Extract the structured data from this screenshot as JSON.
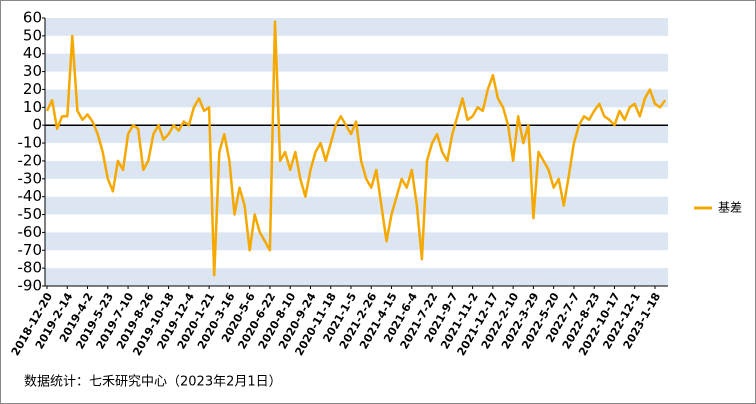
{
  "chart_data": {
    "type": "line",
    "categories": [
      "2018-12-20",
      null,
      null,
      null,
      "2019-2-14",
      null,
      null,
      null,
      "2019-4-2",
      null,
      null,
      null,
      "2019-5-23",
      null,
      null,
      null,
      "2019-7-10",
      null,
      null,
      null,
      "2019-8-26",
      null,
      null,
      null,
      "2019-10-18",
      null,
      null,
      null,
      "2019-12-4",
      null,
      null,
      null,
      "2020-1-21",
      null,
      null,
      null,
      "2020-3-16",
      null,
      null,
      null,
      "2020-5-6",
      null,
      null,
      null,
      "2020-6-22",
      null,
      null,
      null,
      "2020-8-10",
      null,
      null,
      null,
      "2020-9-24",
      null,
      null,
      null,
      "2020-11-18",
      null,
      null,
      null,
      "2021-1-5",
      null,
      null,
      null,
      "2021-2-26",
      null,
      null,
      null,
      "2021-4-15",
      null,
      null,
      null,
      "2021-6-4",
      null,
      null,
      null,
      "2021-7-22",
      null,
      null,
      null,
      "2021-9-7",
      null,
      null,
      null,
      "2021-11-2",
      null,
      null,
      null,
      "2021-12-17",
      null,
      null,
      null,
      "2022-2-10",
      null,
      null,
      null,
      "2022-3-29",
      null,
      null,
      null,
      "2022-5-20",
      null,
      null,
      null,
      "2022-7-7",
      null,
      null,
      null,
      "2022-8-23",
      null,
      null,
      null,
      "2022-10-17",
      null,
      null,
      null,
      "2022-12-1",
      null,
      null,
      null,
      "2023-1-18",
      null,
      null
    ],
    "series": [
      {
        "name": "基差",
        "color": "#f5a800",
        "values": [
          8,
          14,
          -2,
          5,
          5,
          50,
          8,
          3,
          6,
          2,
          -5,
          -15,
          -30,
          -37,
          -20,
          -25,
          -5,
          0,
          -2,
          -25,
          -20,
          -5,
          0,
          -8,
          -5,
          0,
          -3,
          2,
          0,
          10,
          15,
          8,
          10,
          -84,
          -15,
          -5,
          -20,
          -50,
          -35,
          -45,
          -70,
          -50,
          -60,
          -65,
          -70,
          58,
          -20,
          -15,
          -25,
          -15,
          -30,
          -40,
          -25,
          -15,
          -10,
          -20,
          -10,
          0,
          5,
          0,
          -5,
          2,
          -20,
          -30,
          -35,
          -25,
          -45,
          -65,
          -50,
          -40,
          -30,
          -35,
          -25,
          -45,
          -75,
          -20,
          -10,
          -5,
          -15,
          -20,
          -5,
          5,
          15,
          3,
          5,
          10,
          8,
          20,
          28,
          15,
          10,
          0,
          -20,
          5,
          -10,
          0,
          -52,
          -15,
          -20,
          -25,
          -35,
          -30,
          -45,
          -28,
          -10,
          0,
          5,
          3,
          8,
          12,
          5,
          3,
          0,
          8,
          3,
          10,
          12,
          5,
          15,
          20,
          12,
          10,
          14
        ]
      }
    ],
    "ylim": [
      -90,
      60
    ],
    "yticks": [
      60,
      50,
      40,
      30,
      20,
      10,
      0,
      -10,
      -20,
      -30,
      -40,
      -50,
      -60,
      -70,
      -80,
      -90
    ],
    "grid": "bands",
    "band_color": "#dce6f2",
    "zero_line": true,
    "legend": "right",
    "note": "数据统计：七禾研究中心（2023年2月1日）"
  }
}
